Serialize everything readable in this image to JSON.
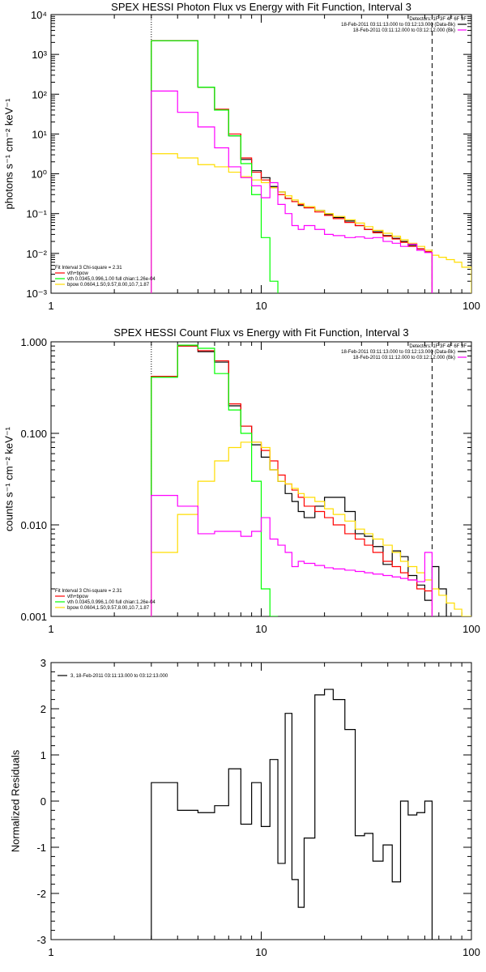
{
  "colors": {
    "data": "#000000",
    "fit_total": "#ff0000",
    "vth": "#00ff00",
    "bpow": "#ffdd00",
    "background": "#ff00ff",
    "axes": "#000000"
  },
  "chart_data": [
    {
      "type": "line",
      "title": "SPEX HESSI Photon Flux vs Energy with Fit Function, Interval 3",
      "xlabel": "",
      "ylabel": "photons s⁻¹ cm⁻² keV⁻¹",
      "xscale": "log",
      "yscale": "log",
      "xlim": [
        1,
        100
      ],
      "ylim": [
        0.001,
        10000
      ],
      "x_ticks": [
        "1",
        "10",
        "100"
      ],
      "y_ticks": [
        "10⁻³",
        "10⁻²",
        "10⁻¹",
        "10⁰",
        "10¹",
        "10²",
        "10³",
        "10⁴"
      ],
      "vlines": [
        {
          "x": 3,
          "style": "dotted"
        },
        {
          "x": 65,
          "style": "dashed"
        }
      ],
      "legend_top": [
        "Detectors: 1F 3F 4F 6F 9F",
        "18-Feb-2011 03:11:13.000 to 03:12:13.000 (Data-Bk)",
        "18-Feb-2011 03:11:12.000 to 03:12:12.000 (Bk)"
      ],
      "legend_bottom": [
        "Fit Interval 3   Chi-square = 2.31",
        "vth+bpow",
        "vth 0.0345,0.996,1.00  full chian:1.26e-04",
        "bpow 0.0604,1.50,9.57,8.00,10.7,1.87"
      ],
      "edges": [
        3,
        4,
        5,
        6,
        7,
        8,
        9,
        10,
        11,
        12,
        13,
        14,
        15,
        16,
        18,
        20,
        22,
        25,
        28,
        31,
        34,
        38,
        42,
        46,
        50,
        55,
        60,
        65,
        70,
        76,
        83,
        90,
        100
      ],
      "series": [
        {
          "name": "Data-Bk",
          "color": "#000000",
          "values": [
            2200,
            2200,
            150,
            40,
            9,
            2.3,
            1.2,
            0.8,
            0.48,
            0.35,
            0.24,
            0.2,
            0.16,
            0.14,
            0.12,
            0.095,
            0.08,
            0.065,
            0.05,
            0.04,
            0.035,
            0.028,
            0.024,
            0.02,
            0.016,
            0.013,
            0.011,
            null,
            null,
            null,
            null,
            null
          ]
        },
        {
          "name": "vth+bpow",
          "color": "#ff0000",
          "values": [
            2200,
            2200,
            150,
            42,
            10,
            2.5,
            1.1,
            0.7,
            0.45,
            0.3,
            0.24,
            0.2,
            0.17,
            0.14,
            0.11,
            0.09,
            0.075,
            0.06,
            0.05,
            0.04,
            0.033,
            0.027,
            0.023,
            0.019,
            0.015,
            0.013,
            0.011,
            null,
            null,
            null,
            null,
            null
          ]
        },
        {
          "name": "vth",
          "color": "#00ff00",
          "values": [
            2200,
            2200,
            150,
            40,
            9,
            1.8,
            0.3,
            0.025,
            0.002,
            null,
            null,
            null,
            null,
            null,
            null,
            null,
            null,
            null,
            null,
            null,
            null,
            null,
            null,
            null,
            null,
            null,
            null,
            null,
            null,
            null,
            null,
            null
          ]
        },
        {
          "name": "bpow",
          "color": "#ffdd00",
          "values": [
            3.2,
            2.5,
            1.7,
            1.5,
            1.1,
            0.85,
            0.7,
            0.6,
            0.45,
            0.35,
            0.28,
            0.22,
            0.18,
            0.15,
            0.12,
            0.1,
            0.085,
            0.07,
            0.058,
            0.047,
            0.038,
            0.032,
            0.027,
            0.022,
            0.018,
            0.015,
            0.012,
            0.009,
            0.008,
            0.007,
            0.006,
            0.0045
          ]
        },
        {
          "name": "Bk",
          "color": "#ff00ff",
          "values": [
            120,
            35,
            15,
            4.5,
            1.5,
            0.8,
            0.5,
            0.25,
            0.6,
            0.17,
            0.1,
            0.05,
            0.04,
            0.05,
            0.04,
            0.03,
            0.028,
            0.025,
            0.026,
            0.024,
            0.025,
            0.02,
            0.018,
            0.015,
            0.017,
            0.012,
            0.0105,
            null,
            null,
            null,
            null,
            null
          ]
        }
      ]
    },
    {
      "type": "line",
      "title": "SPEX HESSI Count Flux vs Energy with Fit Function, Interval 3",
      "xlabel": "",
      "ylabel": "counts s⁻¹ cm⁻² keV⁻¹",
      "xscale": "log",
      "yscale": "log",
      "xlim": [
        1,
        100
      ],
      "ylim": [
        0.001,
        1.0
      ],
      "x_ticks": [
        "1",
        "10",
        "100"
      ],
      "y_ticks": [
        "0.001",
        "0.010",
        "0.100",
        "1.000"
      ],
      "vlines": [
        {
          "x": 3,
          "style": "dotted"
        },
        {
          "x": 65,
          "style": "dashed"
        }
      ],
      "legend_top": [
        "Detectors: 1F 3F 4F 6F 9F",
        "18-Feb-2011 03:11:13.000 to 03:12:13.000 (Data-Bk)",
        "18-Feb-2011 03:11:12.000 to 03:12:12.000 (Bk)"
      ],
      "legend_bottom": [
        "Fit Interval 3   Chi-square = 2.31",
        "vth+bpow",
        "vth 0.0345,0.996,1.00  full chian:1.26e-04",
        "bpow 0.0604,1.50,9.57,8.00,10.7,1.87"
      ],
      "edges": [
        3,
        4,
        5,
        6,
        7,
        8,
        9,
        10,
        11,
        12,
        13,
        14,
        15,
        16,
        18,
        20,
        22,
        25,
        28,
        31,
        34,
        38,
        42,
        46,
        50,
        55,
        60,
        65,
        70,
        76,
        83,
        90,
        100
      ],
      "series": [
        {
          "name": "Data-Bk",
          "color": "#000000",
          "values": [
            0.42,
            0.9,
            0.78,
            0.6,
            0.2,
            0.12,
            0.075,
            0.055,
            0.04,
            0.03,
            0.022,
            0.018,
            0.014,
            0.012,
            0.016,
            0.02,
            0.02,
            0.014,
            0.008,
            0.0075,
            0.0058,
            0.0037,
            0.0052,
            0.0045,
            0.0028,
            0.0022,
            0.0015,
            0.0035,
            0.002,
            null,
            null,
            null,
            null
          ]
        },
        {
          "name": "vth+bpow",
          "color": "#ff0000",
          "values": [
            0.42,
            0.9,
            0.8,
            0.62,
            0.21,
            0.12,
            0.08,
            0.065,
            0.05,
            0.035,
            0.028,
            0.024,
            0.02,
            0.016,
            0.014,
            0.012,
            0.01,
            0.008,
            0.007,
            0.006,
            0.005,
            0.004,
            0.0035,
            0.003,
            0.0025,
            0.002,
            0.0019,
            null,
            null,
            null,
            null,
            null
          ]
        },
        {
          "name": "vth",
          "color": "#00ff00",
          "values": [
            0.41,
            0.92,
            0.85,
            0.45,
            0.18,
            0.1,
            0.03,
            0.002,
            0.001,
            null,
            null,
            null,
            null,
            null,
            null,
            null,
            null,
            null,
            null,
            null,
            null,
            null,
            null,
            null,
            null,
            null,
            null,
            null,
            null,
            null,
            null,
            null
          ]
        },
        {
          "name": "bpow",
          "color": "#ffdd00",
          "values": [
            0.005,
            0.013,
            0.03,
            0.05,
            0.07,
            0.08,
            0.08,
            0.07,
            0.04,
            0.03,
            0.028,
            0.025,
            0.022,
            0.02,
            0.018,
            0.015,
            0.013,
            0.011,
            0.009,
            0.008,
            0.007,
            0.006,
            0.005,
            0.004,
            0.0035,
            0.003,
            0.0025,
            0.002,
            0.0017,
            0.0014,
            0.0012,
            0.001
          ]
        },
        {
          "name": "Bk",
          "color": "#ff00ff",
          "values": [
            0.021,
            0.016,
            0.008,
            0.0085,
            0.0085,
            0.0075,
            0.0085,
            0.012,
            0.007,
            0.006,
            0.005,
            0.0035,
            0.004,
            0.0038,
            0.0036,
            0.0034,
            0.0033,
            0.0032,
            0.0031,
            0.003,
            0.0029,
            0.0028,
            0.0027,
            0.0026,
            0.0025,
            0.0024,
            0.005,
            null,
            null,
            null,
            null,
            null
          ]
        }
      ]
    },
    {
      "type": "line",
      "title": "",
      "xlabel": "",
      "ylabel": "Normalized Residuals",
      "xscale": "log",
      "yscale": "linear",
      "xlim": [
        1,
        100
      ],
      "ylim": [
        -3,
        3
      ],
      "x_ticks": [
        "1",
        "10",
        "100"
      ],
      "y_ticks": [
        "-3",
        "-2",
        "-1",
        "0",
        "1",
        "2",
        "3"
      ],
      "legend_top": [
        "3, 18-Feb-2011 03:11:13.000 to 03:12:13.000"
      ],
      "edges": [
        3,
        4,
        5,
        6,
        7,
        8,
        9,
        10,
        11,
        12,
        13,
        14,
        15,
        16,
        18,
        20,
        22,
        25,
        28,
        31,
        34,
        38,
        42,
        46,
        50,
        55,
        60,
        65
      ],
      "series": [
        {
          "name": "",
          "color": "#000000",
          "values": [
            0.4,
            -0.2,
            -0.25,
            -0.1,
            0.7,
            -0.5,
            0.4,
            -0.55,
            0.9,
            -1.35,
            1.9,
            -1.7,
            -2.3,
            -0.8,
            2.3,
            2.42,
            2.2,
            1.55,
            -0.75,
            -0.7,
            -1.3,
            -0.95,
            -1.75,
            0.0,
            -0.3,
            -0.25,
            0.0
          ]
        }
      ]
    }
  ]
}
